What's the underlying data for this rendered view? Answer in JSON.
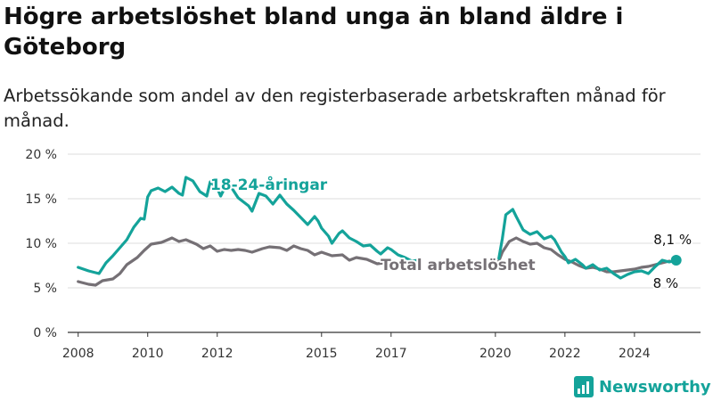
{
  "title": "Högre arbetslöshet bland unga än bland äldre i Göteborg",
  "subtitle": "Arbetssökande som andel av den registerbaserade arbetskraften månad för månad.",
  "brand": "Newsworthy",
  "colors": {
    "youth": "#14a39a",
    "total": "#757075",
    "grid": "#dddddd",
    "axis": "#333333",
    "brand": "#14a39a"
  },
  "chart_data": {
    "type": "line",
    "title": "Högre arbetslöshet bland unga än bland äldre i Göteborg",
    "subtitle": "Arbetssökande som andel av den registerbaserade arbetskraften månad för månad.",
    "xlabel": "",
    "ylabel": "",
    "ylim": [
      0,
      20
    ],
    "yticks": [
      {
        "value": 0,
        "label": "0 %"
      },
      {
        "value": 5,
        "label": "5 %"
      },
      {
        "value": 10,
        "label": "10 %"
      },
      {
        "value": 15,
        "label": "15 %"
      },
      {
        "value": 20,
        "label": "20 %"
      }
    ],
    "xlim": [
      2007.7,
      2025.9
    ],
    "xticks": [
      {
        "value": 2008,
        "label": "2008"
      },
      {
        "value": 2010,
        "label": "2010"
      },
      {
        "value": 2012,
        "label": "2012"
      },
      {
        "value": 2015,
        "label": "2015"
      },
      {
        "value": 2017,
        "label": "2017"
      },
      {
        "value": 2020,
        "label": "2020"
      },
      {
        "value": 2022,
        "label": "2022"
      },
      {
        "value": 2024,
        "label": "2024"
      }
    ],
    "grid": true,
    "series": [
      {
        "name": "18-24-åringar",
        "color": "#14a39a",
        "segments": [
          [
            [
              2008.0,
              7.3
            ],
            [
              2008.3,
              6.9
            ],
            [
              2008.6,
              6.6
            ],
            [
              2008.8,
              7.8
            ],
            [
              2009.0,
              8.6
            ],
            [
              2009.2,
              9.5
            ],
            [
              2009.4,
              10.4
            ],
            [
              2009.6,
              11.8
            ],
            [
              2009.8,
              12.8
            ],
            [
              2009.9,
              12.7
            ],
            [
              2010.0,
              15.2
            ],
            [
              2010.1,
              15.9
            ],
            [
              2010.3,
              16.2
            ],
            [
              2010.5,
              15.8
            ],
            [
              2010.7,
              16.3
            ],
            [
              2010.9,
              15.6
            ],
            [
              2011.0,
              15.4
            ],
            [
              2011.1,
              17.4
            ],
            [
              2011.3,
              17.0
            ],
            [
              2011.5,
              15.8
            ],
            [
              2011.7,
              15.3
            ],
            [
              2011.8,
              16.9
            ],
            [
              2012.0,
              16.2
            ],
            [
              2012.1,
              15.3
            ],
            [
              2012.3,
              16.9
            ],
            [
              2012.4,
              16.3
            ],
            [
              2012.6,
              15.1
            ],
            [
              2012.8,
              14.5
            ],
            [
              2012.9,
              14.2
            ],
            [
              2013.0,
              13.6
            ],
            [
              2013.2,
              15.6
            ],
            [
              2013.4,
              15.3
            ],
            [
              2013.6,
              14.4
            ],
            [
              2013.8,
              15.4
            ],
            [
              2014.0,
              14.4
            ],
            [
              2014.2,
              13.7
            ],
            [
              2014.4,
              12.9
            ],
            [
              2014.6,
              12.1
            ],
            [
              2014.8,
              13.0
            ],
            [
              2014.9,
              12.5
            ],
            [
              2015.0,
              11.7
            ],
            [
              2015.2,
              10.8
            ],
            [
              2015.3,
              10.0
            ],
            [
              2015.5,
              11.1
            ],
            [
              2015.6,
              11.4
            ],
            [
              2015.8,
              10.6
            ],
            [
              2016.0,
              10.2
            ],
            [
              2016.2,
              9.7
            ],
            [
              2016.4,
              9.8
            ],
            [
              2016.6,
              9.1
            ],
            [
              2016.7,
              8.8
            ],
            [
              2016.9,
              9.5
            ],
            [
              2017.0,
              9.3
            ],
            [
              2017.2,
              8.7
            ],
            [
              2017.4,
              8.4
            ],
            [
              2017.6,
              8.0
            ],
            [
              2017.8,
              8.1
            ]
          ],
          [
            [
              2020.1,
              8.3
            ],
            [
              2020.2,
              10.5
            ],
            [
              2020.3,
              13.2
            ],
            [
              2020.5,
              13.8
            ],
            [
              2020.6,
              13.0
            ],
            [
              2020.8,
              11.5
            ],
            [
              2021.0,
              11.0
            ],
            [
              2021.2,
              11.3
            ],
            [
              2021.4,
              10.5
            ],
            [
              2021.6,
              10.8
            ],
            [
              2021.7,
              10.4
            ],
            [
              2021.9,
              9.0
            ],
            [
              2022.0,
              8.5
            ],
            [
              2022.1,
              7.8
            ],
            [
              2022.3,
              8.2
            ],
            [
              2022.5,
              7.6
            ],
            [
              2022.6,
              7.2
            ],
            [
              2022.8,
              7.6
            ],
            [
              2023.0,
              7.0
            ],
            [
              2023.2,
              7.2
            ],
            [
              2023.4,
              6.6
            ],
            [
              2023.6,
              6.1
            ],
            [
              2023.8,
              6.5
            ],
            [
              2024.0,
              6.8
            ],
            [
              2024.2,
              6.9
            ],
            [
              2024.4,
              6.6
            ],
            [
              2024.6,
              7.4
            ],
            [
              2024.8,
              8.1
            ],
            [
              2025.0,
              7.9
            ],
            [
              2025.2,
              8.1
            ]
          ]
        ]
      },
      {
        "name": "Total arbetslöshet",
        "color": "#757075",
        "segments": [
          [
            [
              2008.0,
              5.7
            ],
            [
              2008.3,
              5.4
            ],
            [
              2008.5,
              5.3
            ],
            [
              2008.7,
              5.8
            ],
            [
              2009.0,
              6.0
            ],
            [
              2009.2,
              6.6
            ],
            [
              2009.4,
              7.6
            ],
            [
              2009.7,
              8.4
            ],
            [
              2009.9,
              9.2
            ],
            [
              2010.1,
              9.9
            ],
            [
              2010.4,
              10.1
            ],
            [
              2010.7,
              10.6
            ],
            [
              2010.9,
              10.2
            ],
            [
              2011.1,
              10.4
            ],
            [
              2011.4,
              9.9
            ],
            [
              2011.6,
              9.4
            ],
            [
              2011.8,
              9.7
            ],
            [
              2012.0,
              9.1
            ],
            [
              2012.2,
              9.3
            ],
            [
              2012.4,
              9.2
            ],
            [
              2012.6,
              9.3
            ],
            [
              2012.8,
              9.2
            ],
            [
              2013.0,
              9.0
            ],
            [
              2013.3,
              9.4
            ],
            [
              2013.5,
              9.6
            ],
            [
              2013.8,
              9.5
            ],
            [
              2014.0,
              9.2
            ],
            [
              2014.2,
              9.7
            ],
            [
              2014.4,
              9.4
            ],
            [
              2014.6,
              9.2
            ],
            [
              2014.8,
              8.7
            ],
            [
              2015.0,
              9.0
            ],
            [
              2015.3,
              8.6
            ],
            [
              2015.6,
              8.7
            ],
            [
              2015.8,
              8.1
            ],
            [
              2016.0,
              8.4
            ],
            [
              2016.3,
              8.2
            ],
            [
              2016.6,
              7.7
            ],
            [
              2016.8,
              7.8
            ],
            [
              2017.0,
              7.6
            ],
            [
              2017.3,
              7.8
            ],
            [
              2017.6,
              7.6
            ],
            [
              2017.8,
              7.5
            ]
          ],
          [
            [
              2020.1,
              8.0
            ],
            [
              2020.2,
              9.0
            ],
            [
              2020.4,
              10.2
            ],
            [
              2020.6,
              10.6
            ],
            [
              2020.8,
              10.2
            ],
            [
              2021.0,
              9.9
            ],
            [
              2021.2,
              10.0
            ],
            [
              2021.4,
              9.5
            ],
            [
              2021.6,
              9.3
            ],
            [
              2021.8,
              8.7
            ],
            [
              2022.0,
              8.2
            ],
            [
              2022.2,
              7.9
            ],
            [
              2022.4,
              7.5
            ],
            [
              2022.6,
              7.2
            ],
            [
              2022.8,
              7.3
            ],
            [
              2023.0,
              7.1
            ],
            [
              2023.2,
              6.8
            ],
            [
              2023.4,
              6.8
            ],
            [
              2023.6,
              6.9
            ],
            [
              2023.8,
              7.0
            ],
            [
              2024.0,
              7.1
            ],
            [
              2024.2,
              7.3
            ],
            [
              2024.4,
              7.4
            ],
            [
              2024.6,
              7.6
            ],
            [
              2024.8,
              7.8
            ],
            [
              2025.0,
              8.0
            ]
          ]
        ]
      }
    ],
    "annotations": [
      {
        "series": "18-24-åringar",
        "text": "18-24-åringar",
        "x": 2011.8,
        "y": 16.0
      },
      {
        "series": "Total arbetslöshet",
        "text": "Total arbetslöshet",
        "x": 2016.7,
        "y": 7.0
      }
    ],
    "end_labels": [
      {
        "series": "18-24-åringar",
        "text": "8,1 %",
        "x": 2025.2,
        "y": 8.1
      },
      {
        "series": "Total arbetslöshet",
        "text": "8 %",
        "x": 2025.0,
        "y": 8.0
      }
    ]
  }
}
